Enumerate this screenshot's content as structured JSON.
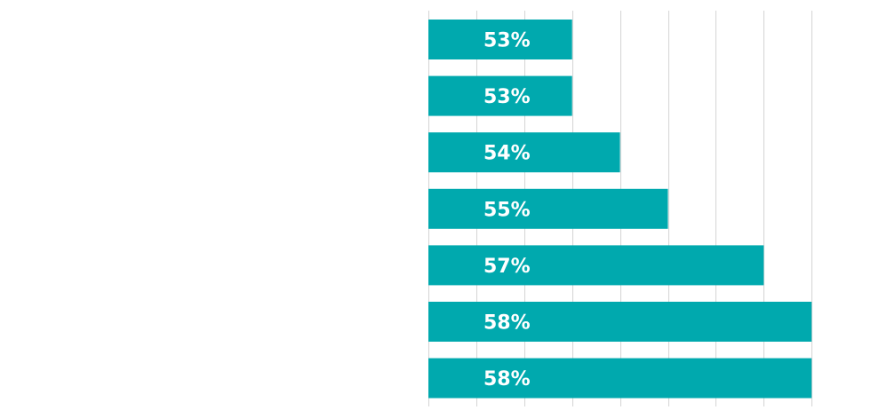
{
  "chart_data": {
    "type": "bar",
    "orientation": "horizontal",
    "title": "",
    "xlabel": "",
    "ylabel": "",
    "categories": [
      "",
      "",
      "",
      "",
      "",
      "",
      ""
    ],
    "values": [
      53,
      53,
      54,
      55,
      57,
      58,
      58
    ],
    "value_labels": [
      "53%",
      "53%",
      "54%",
      "55%",
      "57%",
      "58%",
      "58%"
    ],
    "xlim": [
      50,
      58.5
    ],
    "grid": true,
    "legend": "none",
    "bar_color": "#00A9AE",
    "label_color": "#FFFFFF",
    "grid_color": "#D4D4D4"
  }
}
